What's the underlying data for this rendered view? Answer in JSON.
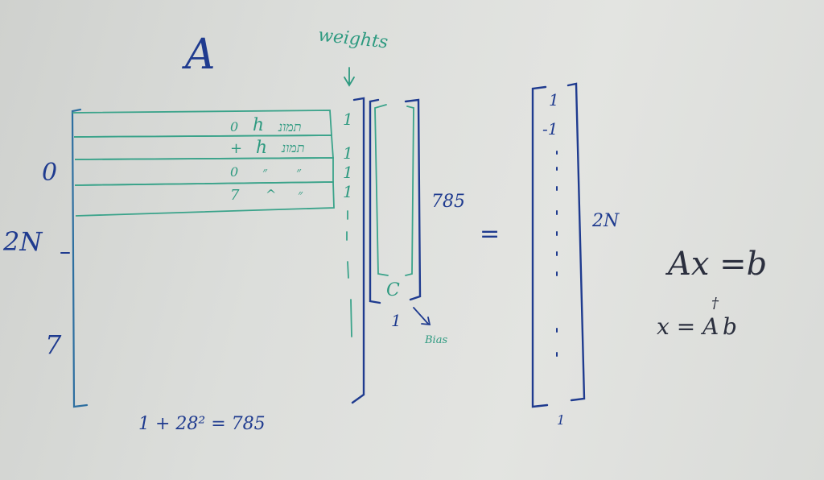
{
  "colors": {
    "blue_ink": "#1f3b8f",
    "green_ink": "#2e9a80",
    "dark_ink": "#2b2f3e",
    "board": "#dcdedb"
  },
  "matrix_A": {
    "title": "A",
    "left_labels": {
      "zero": "0",
      "two_n": "2N",
      "seven": "7"
    },
    "rows": [
      {
        "c1": "0",
        "c2": "ℎ",
        "c3": "תמונ"
      },
      {
        "c1": "+",
        "c2": "ℎ",
        "c3": "תמונ"
      },
      {
        "c1": "0",
        "c2": "״",
        "c3": "״"
      },
      {
        "c1": "7",
        "c2": "^",
        "c3": "״"
      }
    ],
    "ones_column": [
      "1",
      "1",
      "1",
      "1"
    ],
    "weights_label": "weights",
    "arrow_down": "↓",
    "bottom_formula": "1 + 28² = 785"
  },
  "vector_x": {
    "size_label": "785",
    "bottom_one": "1",
    "bias_label": "Bias",
    "c_mark": "C"
  },
  "equals": "=",
  "vector_b": {
    "top_entries": [
      "1",
      "-1"
    ],
    "size_label": "2N",
    "bottom_one": "1"
  },
  "equations": {
    "line1": "Ax =b",
    "line2_lhs": "x = A",
    "dagger": "†",
    "line2_rhs": "b"
  }
}
